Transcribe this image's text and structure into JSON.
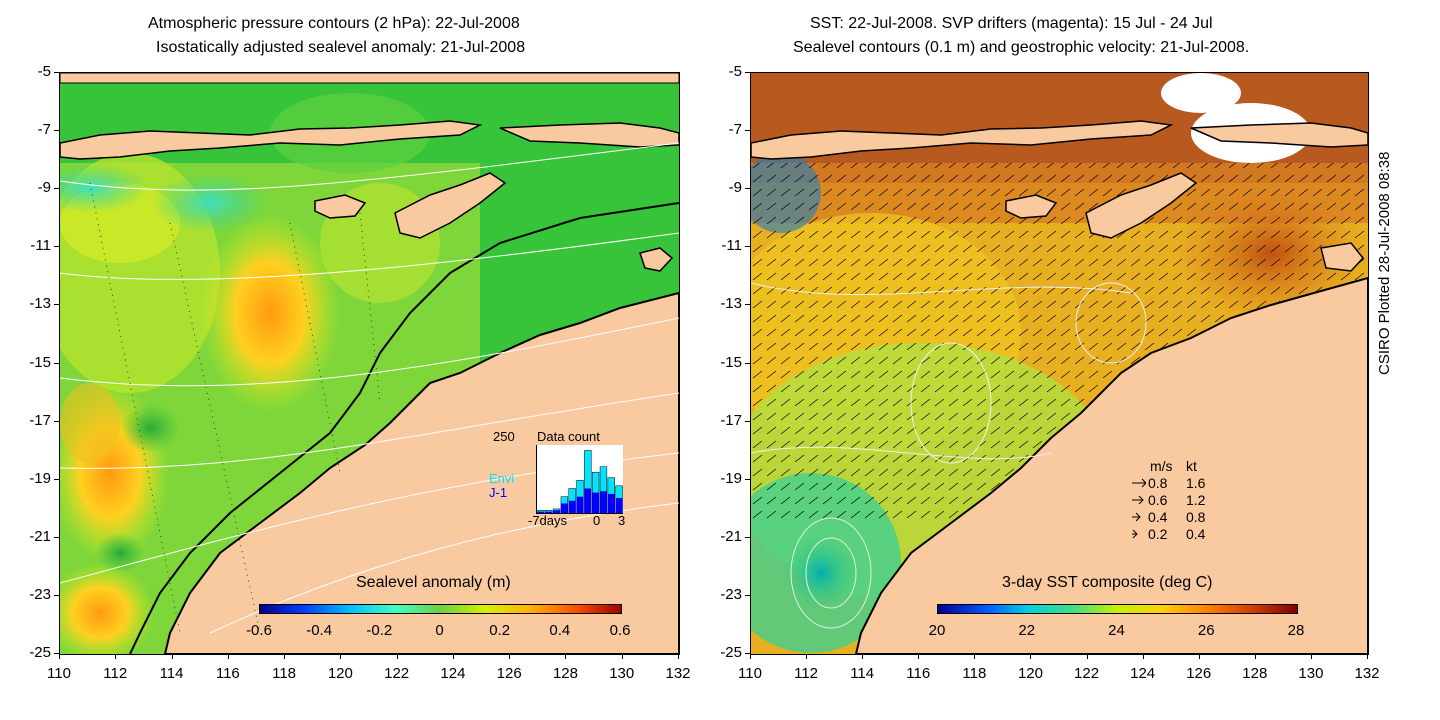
{
  "left_panel": {
    "title_line1": "Atmospheric pressure contours (2 hPa): 22-Jul-2008",
    "title_line2": "Isostatically adjusted sealevel anomaly: 21-Jul-2008",
    "colorbar_title": "Sealevel anomaly (m)",
    "colorbar_ticks": [
      "-0.6",
      "-0.4",
      "-0.2",
      "0",
      "0.2",
      "0.4",
      "0.6"
    ],
    "colorbar_colors": [
      "#00008f",
      "#0040ff",
      "#00c0ff",
      "#40ffbf",
      "#6fd040",
      "#d8f000",
      "#ffb000",
      "#ff5000",
      "#a00000"
    ],
    "inset": {
      "y_max": "250",
      "title": "Data count",
      "series1": "Envi",
      "series2": "J-1",
      "x_start": "-7days",
      "x_mid": "0",
      "x_end": "3",
      "series1_color": "#00e5ff",
      "series2_color": "#0000ff",
      "series1_values": [
        10,
        10,
        15,
        60,
        90,
        120,
        230,
        150,
        170,
        130,
        100
      ],
      "series2_values": [
        5,
        5,
        10,
        35,
        45,
        60,
        90,
        75,
        80,
        70,
        55
      ]
    }
  },
  "right_panel": {
    "title_line1": "SST: 22-Jul-2008. SVP drifters (magenta): 15 Jul - 24 Jul",
    "title_line2": "Sealevel contours (0.1 m) and geostrophic velocity: 21-Jul-2008.",
    "colorbar_title": "3-day SST composite (deg C)",
    "colorbar_ticks": [
      "20",
      "22",
      "24",
      "26",
      "28"
    ],
    "colorbar_colors": [
      "#00008f",
      "#0050ff",
      "#00d0e0",
      "#40e080",
      "#c8f000",
      "#ffd000",
      "#ff8000",
      "#d04000",
      "#800000"
    ],
    "legend": {
      "header_ms": "m/s",
      "header_kt": "kt",
      "rows": [
        {
          "ms": "0.8",
          "kt": "1.6"
        },
        {
          "ms": "0.6",
          "kt": "1.2"
        },
        {
          "ms": "0.4",
          "kt": "0.8"
        },
        {
          "ms": "0.2",
          "kt": "0.4"
        }
      ]
    }
  },
  "axes": {
    "y_labels": [
      "-5",
      "-7",
      "-9",
      "-11",
      "-13",
      "-15",
      "-17",
      "-19",
      "-21",
      "-23",
      "-25"
    ],
    "x_labels": [
      "110",
      "112",
      "114",
      "116",
      "118",
      "120",
      "122",
      "124",
      "126",
      "128",
      "130",
      "132"
    ]
  },
  "credit": "CSIRO Plotted 28-Jul-2008 08:38",
  "colors": {
    "land": "#f9c9a0",
    "ocean_green": "#2fc240",
    "sst_orange": "#f3a020",
    "coast": "#000000"
  }
}
